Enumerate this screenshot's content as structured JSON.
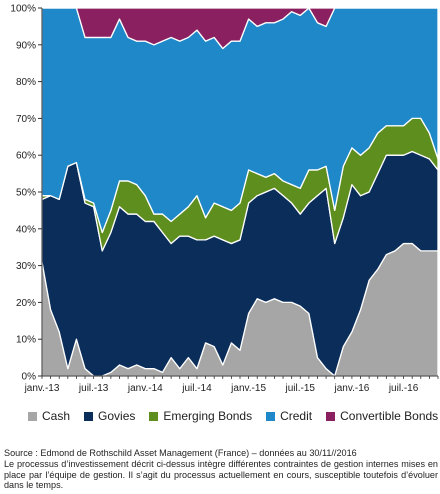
{
  "chart_data": {
    "type": "area",
    "stacked": true,
    "percent": true,
    "x": [
      "2013-01",
      "2013-02",
      "2013-03",
      "2013-04",
      "2013-05",
      "2013-06",
      "2013-07",
      "2013-08",
      "2013-09",
      "2013-10",
      "2013-11",
      "2013-12",
      "2014-01",
      "2014-02",
      "2014-03",
      "2014-04",
      "2014-05",
      "2014-06",
      "2014-07",
      "2014-08",
      "2014-09",
      "2014-10",
      "2014-11",
      "2014-12",
      "2015-01",
      "2015-02",
      "2015-03",
      "2015-04",
      "2015-05",
      "2015-06",
      "2015-07",
      "2015-08",
      "2015-09",
      "2015-10",
      "2015-11",
      "2015-12",
      "2016-01",
      "2016-02",
      "2016-03",
      "2016-04",
      "2016-05",
      "2016-06",
      "2016-07",
      "2016-08",
      "2016-09",
      "2016-10",
      "2016-11"
    ],
    "x_tick_labels": [
      "janv.-13",
      "juil.-13",
      "janv.-14",
      "juil.-14",
      "janv.-15",
      "juil.-15",
      "janv.-16",
      "juil.-16"
    ],
    "x_tick_index": [
      0,
      6,
      12,
      18,
      24,
      30,
      36,
      42
    ],
    "ylim": [
      0,
      100
    ],
    "y_ticks": [
      "0%",
      "10%",
      "20%",
      "30%",
      "40%",
      "50%",
      "60%",
      "70%",
      "80%",
      "90%",
      "100%"
    ],
    "series": [
      {
        "name": "Cash",
        "color": "#a6a6a6",
        "values": [
          31,
          18,
          12,
          2,
          10,
          2,
          0,
          0,
          1,
          3,
          2,
          3,
          2,
          2,
          1,
          5,
          2,
          5,
          2,
          9,
          8,
          3,
          9,
          7,
          17,
          21,
          20,
          21,
          20,
          20,
          19,
          17,
          5,
          2,
          0,
          8,
          12,
          18,
          26,
          29,
          33,
          34,
          36,
          36,
          34,
          34,
          34
        ]
      },
      {
        "name": "Govies",
        "color": "#0a2d5a",
        "values": [
          17,
          31,
          36,
          55,
          48,
          45,
          46,
          34,
          38,
          43,
          42,
          41,
          40,
          40,
          38,
          31,
          36,
          33,
          35,
          28,
          30,
          34,
          27,
          30,
          30,
          28,
          30,
          30,
          29,
          27,
          25,
          30,
          44,
          49,
          36,
          35,
          40,
          31,
          24,
          26,
          27,
          26,
          24,
          25,
          26,
          25,
          22
        ]
      },
      {
        "name": "Emerging Bonds",
        "color": "#5e8e1e",
        "values": [
          1,
          0,
          0,
          0,
          0,
          1,
          1,
          5,
          6,
          7,
          9,
          8,
          7,
          2,
          5,
          6,
          6,
          8,
          12,
          6,
          9,
          9,
          9,
          10,
          9,
          6,
          4,
          4,
          4,
          5,
          7,
          9,
          7,
          6,
          9,
          14,
          10,
          11,
          12,
          11,
          8,
          8,
          8,
          9,
          10,
          7,
          3
        ]
      },
      {
        "name": "Credit",
        "color": "#1e88c8",
        "values": [
          51,
          51,
          52,
          43,
          42,
          44,
          45,
          53,
          47,
          44,
          39,
          39,
          42,
          46,
          47,
          50,
          47,
          46,
          45,
          48,
          45,
          43,
          46,
          44,
          41,
          40,
          42,
          41,
          44,
          47,
          47,
          44,
          40,
          38,
          55,
          43,
          38,
          40,
          38,
          34,
          32,
          32,
          32,
          30,
          30,
          34,
          41
        ]
      },
      {
        "name": "Convertible Bonds",
        "color": "#8a2060",
        "values": [
          0,
          0,
          0,
          0,
          0,
          8,
          8,
          8,
          8,
          3,
          8,
          9,
          9,
          10,
          9,
          8,
          9,
          8,
          6,
          9,
          8,
          11,
          9,
          9,
          3,
          5,
          4,
          4,
          3,
          1,
          2,
          0,
          4,
          5,
          0,
          0,
          0,
          0,
          0,
          0,
          0,
          0,
          0,
          0,
          0,
          0,
          0
        ]
      }
    ]
  },
  "footer": {
    "source_line": "Source :  Edmond de Rothschild Asset Management (France) – données au 30/11//2016",
    "disclaimer": "Le processus d’investissement décrit ci-dessus intègre différentes contraintes de gestion internes mises en place par l’équipe de gestion. Il s’agit du processus actuellement en cours, susceptible toutefois d’évoluer dans le temps."
  }
}
